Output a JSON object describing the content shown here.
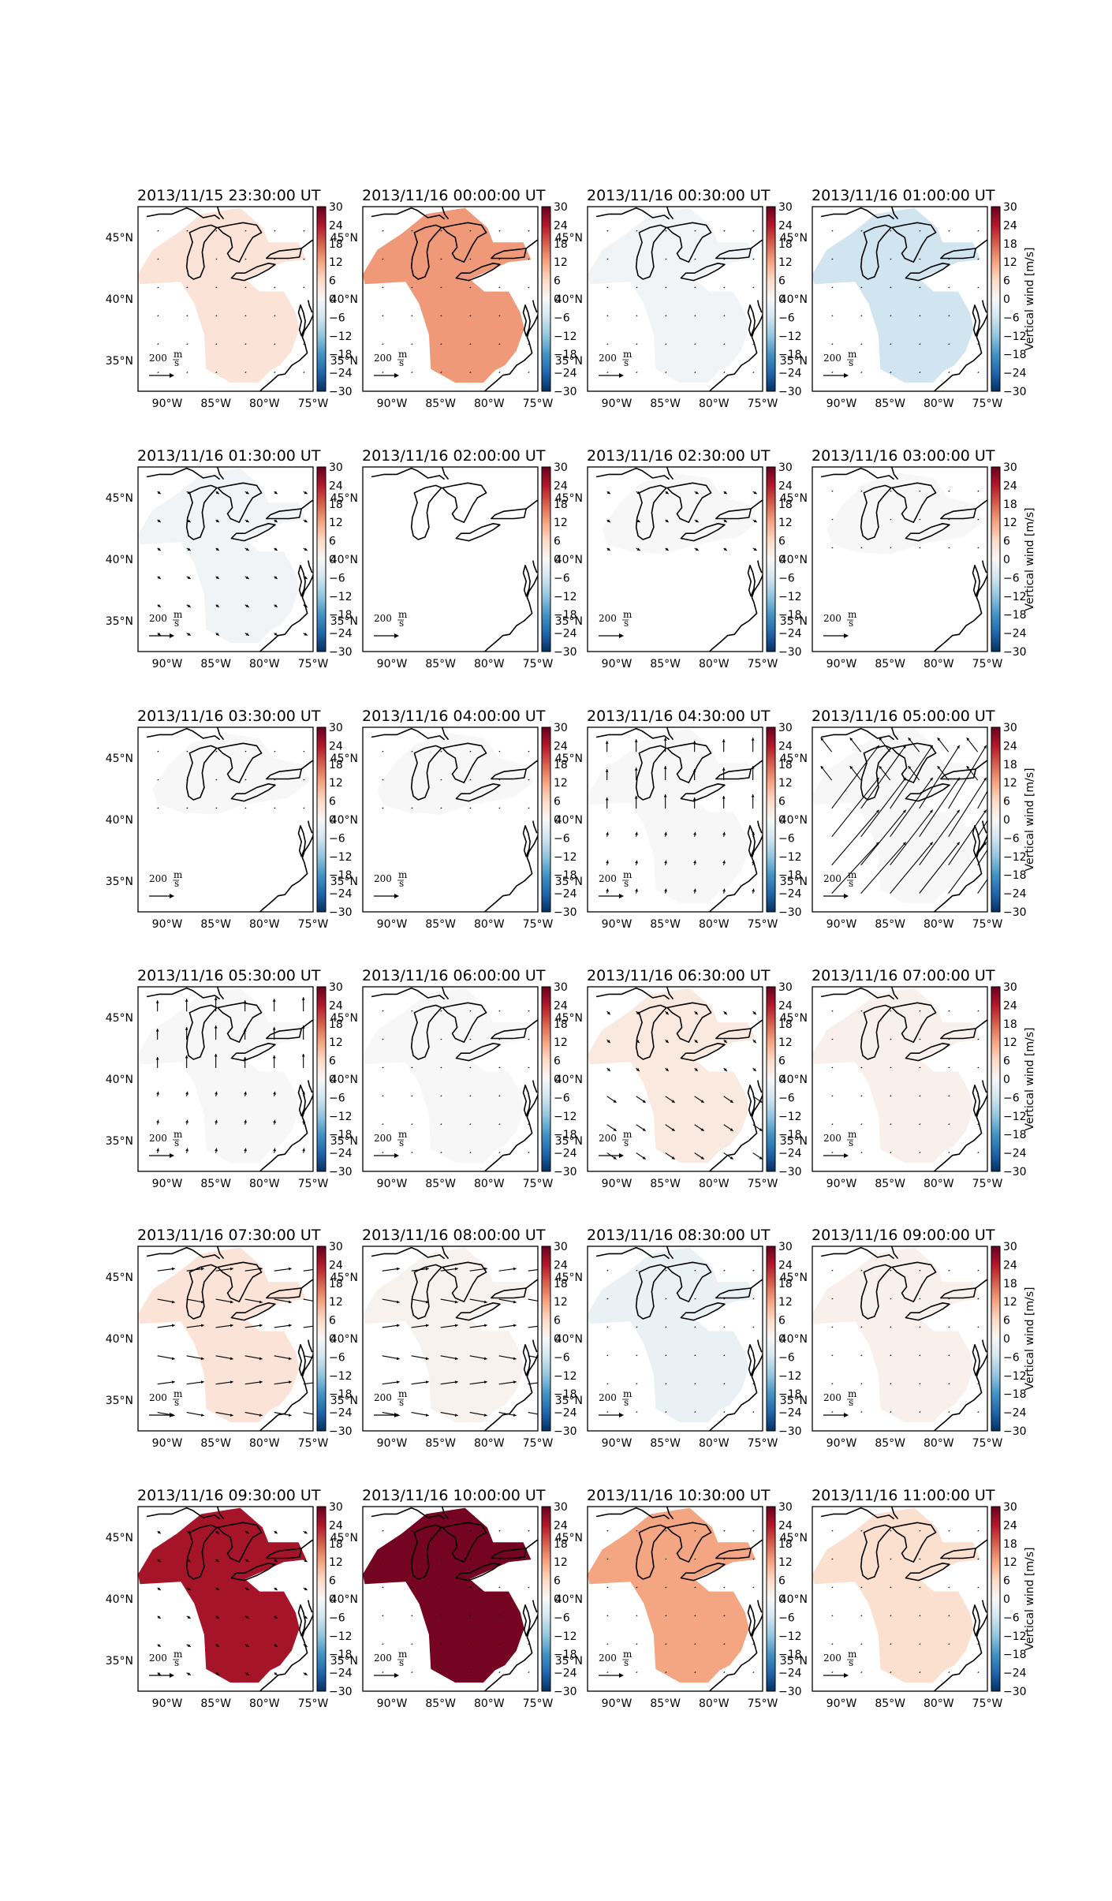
{
  "chart_data": {
    "type": "heatmap",
    "layout": "small-multiples grid, 6 rows x 4 columns",
    "x_tick_labels": [
      "90°W",
      "85°W",
      "80°W",
      "75°W"
    ],
    "y_tick_labels": [
      "45°N",
      "40°N",
      "35°N"
    ],
    "xlim": [
      -93,
      -75
    ],
    "ylim": [
      32.5,
      47.5
    ],
    "colorbar": {
      "ticks": [
        "30",
        "24",
        "18",
        "12",
        "6",
        "0",
        "−6",
        "−12",
        "−18",
        "−24",
        "−30"
      ],
      "range": [
        -30,
        30
      ],
      "colormap": "RdBu_r",
      "label": "Vertical wind [m/s]"
    },
    "quiver_key": {
      "value": "200",
      "unit_top": "m",
      "unit_bottom": "s"
    },
    "panels": [
      {
        "title": "2013/11/15 23:30:00 UT",
        "vertical_wind": 4,
        "region": "full",
        "arrows": "tiny"
      },
      {
        "title": "2013/11/16 00:00:00 UT",
        "vertical_wind": 13,
        "region": "full",
        "arrows": "tiny"
      },
      {
        "title": "2013/11/16 00:30:00 UT",
        "vertical_wind": -1,
        "region": "full",
        "arrows": "tiny"
      },
      {
        "title": "2013/11/16 01:00:00 UT",
        "vertical_wind": -6,
        "region": "full",
        "arrows": "tiny"
      },
      {
        "title": "2013/11/16 01:30:00 UT",
        "vertical_wind": -1,
        "region": "full",
        "arrows": "small"
      },
      {
        "title": "2013/11/16 02:00:00 UT",
        "vertical_wind": null,
        "region": "none",
        "arrows": "none"
      },
      {
        "title": "2013/11/16 02:30:00 UT",
        "vertical_wind": 0,
        "region": "north",
        "arrows": "small"
      },
      {
        "title": "2013/11/16 03:00:00 UT",
        "vertical_wind": 0,
        "region": "north",
        "arrows": "tiny"
      },
      {
        "title": "2013/11/16 03:30:00 UT",
        "vertical_wind": 0,
        "region": "north",
        "arrows": "tiny"
      },
      {
        "title": "2013/11/16 04:00:00 UT",
        "vertical_wind": 0,
        "region": "north",
        "arrows": "tiny"
      },
      {
        "title": "2013/11/16 04:30:00 UT",
        "vertical_wind": 0,
        "region": "full",
        "arrows": "north"
      },
      {
        "title": "2013/11/16 05:00:00 UT",
        "vertical_wind": 0,
        "region": "full",
        "arrows": "long"
      },
      {
        "title": "2013/11/16 05:30:00 UT",
        "vertical_wind": 0,
        "region": "full",
        "arrows": "north"
      },
      {
        "title": "2013/11/16 06:00:00 UT",
        "vertical_wind": 0,
        "region": "full",
        "arrows": "tiny"
      },
      {
        "title": "2013/11/16 06:30:00 UT",
        "vertical_wind": 3,
        "region": "full",
        "arrows": "southeast"
      },
      {
        "title": "2013/11/16 07:00:00 UT",
        "vertical_wind": 1.5,
        "region": "full",
        "arrows": "tiny"
      },
      {
        "title": "2013/11/16 07:30:00 UT",
        "vertical_wind": 4,
        "region": "full",
        "arrows": "east"
      },
      {
        "title": "2013/11/16 08:00:00 UT",
        "vertical_wind": 1,
        "region": "full",
        "arrows": "east"
      },
      {
        "title": "2013/11/16 08:30:00 UT",
        "vertical_wind": -2,
        "region": "full",
        "arrows": "tiny"
      },
      {
        "title": "2013/11/16 09:00:00 UT",
        "vertical_wind": 1.5,
        "region": "full",
        "arrows": "tiny"
      },
      {
        "title": "2013/11/16 09:30:00 UT",
        "vertical_wind": 25,
        "region": "full",
        "arrows": "small"
      },
      {
        "title": "2013/11/16 10:00:00 UT",
        "vertical_wind": 29,
        "region": "full",
        "arrows": "tiny"
      },
      {
        "title": "2013/11/16 10:30:00 UT",
        "vertical_wind": 12,
        "region": "full",
        "arrows": "tiny"
      },
      {
        "title": "2013/11/16 11:00:00 UT",
        "vertical_wind": 5,
        "region": "full",
        "arrows": "tiny"
      }
    ]
  }
}
